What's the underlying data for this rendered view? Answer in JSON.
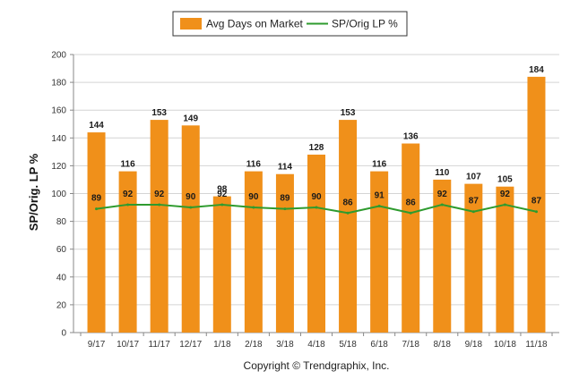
{
  "chart_data": {
    "type": "bar",
    "categories": [
      "9/17",
      "10/17",
      "11/17",
      "12/17",
      "1/18",
      "2/18",
      "3/18",
      "4/18",
      "5/18",
      "6/18",
      "7/18",
      "8/18",
      "9/18",
      "10/18",
      "11/18"
    ],
    "series": [
      {
        "name": "Avg Days on Market",
        "kind": "bar",
        "color": "#F0901A",
        "values": [
          144,
          116,
          153,
          149,
          98,
          116,
          114,
          128,
          153,
          116,
          136,
          110,
          107,
          105,
          184
        ]
      },
      {
        "name": "SP/Orig LP %",
        "kind": "line",
        "color": "#2E9B2E",
        "values": [
          89,
          92,
          92,
          90,
          92,
          90,
          89,
          90,
          86,
          91,
          86,
          92,
          87,
          92,
          87
        ]
      }
    ],
    "ylabel": "SP/Orig. LP %",
    "ylim": [
      0,
      200
    ],
    "yticks": [
      0,
      20,
      40,
      60,
      80,
      100,
      120,
      140,
      160,
      180,
      200
    ],
    "grid": true,
    "legend_position": "top-center",
    "data_labels": true
  },
  "footer": {
    "copyright": "Copyright © Trendgraphix, Inc."
  }
}
